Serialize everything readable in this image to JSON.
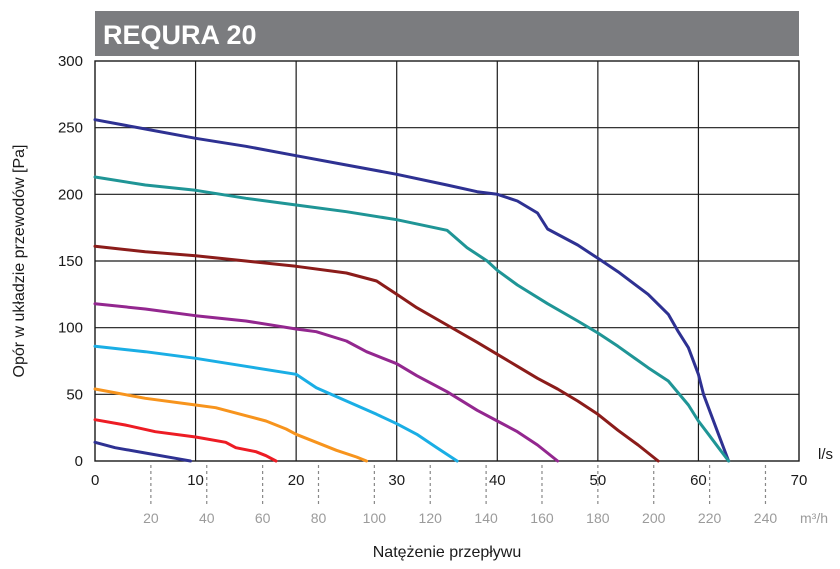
{
  "chart_data": {
    "type": "line",
    "title": "REQURA 20",
    "xlabel": "Natężenie przepływu",
    "ylabel": "Opór w układzie przewodów [Pa]",
    "x_unit": "l/s",
    "x2_unit": "m³/h",
    "xlim": [
      0,
      70
    ],
    "ylim": [
      0,
      300
    ],
    "x_ticks": [
      "0",
      "10",
      "20",
      "30",
      "40",
      "50",
      "60",
      "70"
    ],
    "y_ticks": [
      "0",
      "50",
      "100",
      "150",
      "200",
      "250",
      "300"
    ],
    "x2_ticks": [
      "20",
      "40",
      "60",
      "80",
      "100",
      "120",
      "140",
      "160",
      "180",
      "200",
      "220",
      "240"
    ],
    "grid": true,
    "legend": "none",
    "title_bar_color": "#7b7c7f",
    "series": [
      {
        "color": "#2e3192",
        "x": [
          0,
          5,
          10,
          15,
          20,
          25,
          30,
          35,
          38,
          40,
          42,
          44,
          45,
          48,
          50,
          52,
          55,
          57,
          58,
          59,
          60,
          60.5,
          61,
          62,
          63
        ],
        "y": [
          256,
          249,
          242,
          236,
          229,
          222,
          215,
          207,
          202,
          200,
          195,
          186,
          174,
          162,
          152,
          142,
          125,
          110,
          97,
          85,
          65,
          50,
          40,
          20,
          0
        ]
      },
      {
        "color": "#1f9596",
        "x": [
          0,
          5,
          10,
          15,
          20,
          25,
          30,
          35,
          37,
          39,
          40,
          42,
          45,
          48,
          50,
          52,
          55,
          57,
          59,
          60,
          61,
          62,
          63
        ],
        "y": [
          213,
          207,
          203,
          197,
          192,
          187,
          181,
          173,
          160,
          150,
          143,
          132,
          118,
          105,
          96,
          86,
          70,
          60,
          42,
          30,
          20,
          10,
          0
        ]
      },
      {
        "color": "#8b1c1a",
        "x": [
          0,
          5,
          10,
          15,
          20,
          25,
          28,
          30,
          32,
          35,
          38,
          40,
          42,
          44,
          46,
          48,
          50,
          52,
          54,
          56
        ],
        "y": [
          161,
          157,
          154,
          150,
          146,
          141,
          135,
          125,
          115,
          102,
          89,
          80,
          71,
          62,
          54,
          45,
          35,
          23,
          12,
          0
        ]
      },
      {
        "color": "#93278f",
        "x": [
          0,
          5,
          10,
          15,
          20,
          22,
          25,
          27,
          30,
          32,
          35,
          38,
          40,
          42,
          44,
          46
        ],
        "y": [
          118,
          114,
          109,
          105,
          99,
          97,
          90,
          82,
          73,
          64,
          52,
          38,
          30,
          22,
          12,
          0
        ]
      },
      {
        "color": "#1aaee5",
        "x": [
          0,
          5,
          10,
          15,
          20,
          22,
          25,
          28,
          30,
          32,
          34,
          36
        ],
        "y": [
          86,
          82,
          77,
          71,
          65,
          55,
          45,
          35,
          28,
          20,
          10,
          0
        ]
      },
      {
        "color": "#f7941d",
        "x": [
          0,
          5,
          10,
          12,
          15,
          17,
          19,
          20,
          22,
          24,
          26,
          27
        ],
        "y": [
          54,
          47,
          42,
          40,
          34,
          30,
          24,
          20,
          14,
          8,
          3,
          0
        ]
      },
      {
        "color": "#ed1c24",
        "x": [
          0,
          3,
          6,
          10,
          13,
          14,
          16,
          17,
          18
        ],
        "y": [
          31,
          27,
          22,
          18,
          14,
          10,
          7,
          4,
          0
        ]
      },
      {
        "color": "#2e3192",
        "x": [
          0,
          2,
          5,
          8,
          9.5
        ],
        "y": [
          14,
          10,
          6,
          2,
          0
        ]
      }
    ]
  }
}
